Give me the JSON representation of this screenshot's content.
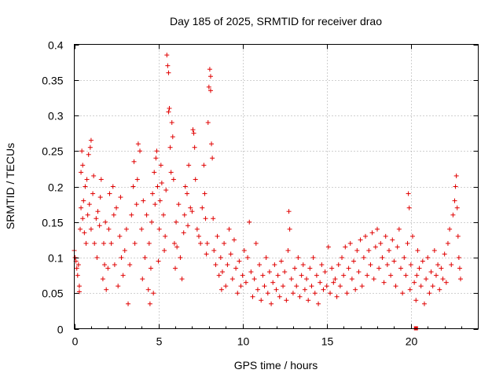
{
  "chart_data": {
    "type": "scatter",
    "title": "Day 185 of 2025, SRMTID for receiver drao",
    "xlabel": "GPS time / hours",
    "ylabel": "SRMTID / TECUs",
    "xlim": [
      0,
      24
    ],
    "ylim": [
      0,
      0.4
    ],
    "x_ticks": [
      0,
      5,
      10,
      15,
      20
    ],
    "x_tick_labels": [
      "0",
      "5",
      "10",
      "15",
      "20"
    ],
    "y_ticks": [
      0,
      0.05,
      0.1,
      0.15,
      0.2,
      0.25,
      0.3,
      0.35,
      0.4
    ],
    "y_tick_labels": [
      "0",
      "0.05",
      "0.1",
      "0.15",
      "0.2",
      "0.25",
      "0.3",
      "0.35",
      "0.4"
    ],
    "grid": true,
    "marker": "+",
    "color": "#e00000",
    "series": [
      {
        "name": "SRMTID",
        "points": [
          [
            0.0,
            0.11
          ],
          [
            0.05,
            0.1
          ],
          [
            0.1,
            0.095
          ],
          [
            0.15,
            0.085
          ],
          [
            0.2,
            0.075
          ],
          [
            0.25,
            0.09
          ],
          [
            0.3,
            0.06
          ],
          [
            0.3,
            0.052
          ],
          [
            0.35,
            0.14
          ],
          [
            0.4,
            0.17
          ],
          [
            0.4,
            0.22
          ],
          [
            0.45,
            0.25
          ],
          [
            0.5,
            0.23
          ],
          [
            0.5,
            0.155
          ],
          [
            0.55,
            0.18
          ],
          [
            0.6,
            0.135
          ],
          [
            0.65,
            0.2
          ],
          [
            0.7,
            0.12
          ],
          [
            0.75,
            0.21
          ],
          [
            0.8,
            0.16
          ],
          [
            0.85,
            0.245
          ],
          [
            0.9,
            0.175
          ],
          [
            0.95,
            0.255
          ],
          [
            1.0,
            0.265
          ],
          [
            1.0,
            0.14
          ],
          [
            1.1,
            0.19
          ],
          [
            1.15,
            0.215
          ],
          [
            1.2,
            0.12
          ],
          [
            1.3,
            0.155
          ],
          [
            1.35,
            0.1
          ],
          [
            1.4,
            0.165
          ],
          [
            1.5,
            0.145
          ],
          [
            1.55,
            0.185
          ],
          [
            1.6,
            0.21
          ],
          [
            1.7,
            0.07
          ],
          [
            1.75,
            0.12
          ],
          [
            1.8,
            0.09
          ],
          [
            1.85,
            0.15
          ],
          [
            1.9,
            0.055
          ],
          [
            2.0,
            0.085
          ],
          [
            2.05,
            0.14
          ],
          [
            2.1,
            0.19
          ],
          [
            2.2,
            0.12
          ],
          [
            2.3,
            0.2
          ],
          [
            2.35,
            0.16
          ],
          [
            2.4,
            0.09
          ],
          [
            2.5,
            0.17
          ],
          [
            2.6,
            0.06
          ],
          [
            2.7,
            0.13
          ],
          [
            2.75,
            0.185
          ],
          [
            2.8,
            0.1
          ],
          [
            2.9,
            0.075
          ],
          [
            3.0,
            0.11
          ],
          [
            3.1,
            0.14
          ],
          [
            3.2,
            0.035
          ],
          [
            3.3,
            0.09
          ],
          [
            3.4,
            0.16
          ],
          [
            3.5,
            0.2
          ],
          [
            3.55,
            0.235
          ],
          [
            3.6,
            0.12
          ],
          [
            3.7,
            0.175
          ],
          [
            3.75,
            0.21
          ],
          [
            3.8,
            0.26
          ],
          [
            3.9,
            0.25
          ],
          [
            4.0,
            0.14
          ],
          [
            4.05,
            0.07
          ],
          [
            4.1,
            0.18
          ],
          [
            4.2,
            0.1
          ],
          [
            4.3,
            0.16
          ],
          [
            4.4,
            0.055
          ],
          [
            4.45,
            0.12
          ],
          [
            4.5,
            0.035
          ],
          [
            4.55,
            0.085
          ],
          [
            4.6,
            0.15
          ],
          [
            4.65,
            0.19
          ],
          [
            4.7,
            0.05
          ],
          [
            4.75,
            0.22
          ],
          [
            4.8,
            0.175
          ],
          [
            4.85,
            0.24
          ],
          [
            4.9,
            0.25
          ],
          [
            4.95,
            0.2
          ],
          [
            5.0,
            0.095
          ],
          [
            5.05,
            0.14
          ],
          [
            5.1,
            0.18
          ],
          [
            5.15,
            0.23
          ],
          [
            5.2,
            0.205
          ],
          [
            5.3,
            0.16
          ],
          [
            5.35,
            0.11
          ],
          [
            5.4,
            0.13
          ],
          [
            5.45,
            0.195
          ],
          [
            5.5,
            0.385
          ],
          [
            5.55,
            0.37
          ],
          [
            5.6,
            0.36
          ],
          [
            5.6,
            0.305
          ],
          [
            5.65,
            0.31
          ],
          [
            5.7,
            0.255
          ],
          [
            5.75,
            0.22
          ],
          [
            5.8,
            0.29
          ],
          [
            5.85,
            0.27
          ],
          [
            5.9,
            0.21
          ],
          [
            5.95,
            0.12
          ],
          [
            6.0,
            0.085
          ],
          [
            6.05,
            0.15
          ],
          [
            6.1,
            0.115
          ],
          [
            6.2,
            0.175
          ],
          [
            6.3,
            0.1
          ],
          [
            6.4,
            0.07
          ],
          [
            6.5,
            0.135
          ],
          [
            6.55,
            0.16
          ],
          [
            6.6,
            0.2
          ],
          [
            6.7,
            0.19
          ],
          [
            6.75,
            0.145
          ],
          [
            6.8,
            0.23
          ],
          [
            6.9,
            0.17
          ],
          [
            7.0,
            0.165
          ],
          [
            7.05,
            0.28
          ],
          [
            7.1,
            0.275
          ],
          [
            7.15,
            0.255
          ],
          [
            7.2,
            0.21
          ],
          [
            7.3,
            0.14
          ],
          [
            7.4,
            0.13
          ],
          [
            7.5,
            0.12
          ],
          [
            7.6,
            0.17
          ],
          [
            7.7,
            0.23
          ],
          [
            7.75,
            0.19
          ],
          [
            7.8,
            0.155
          ],
          [
            7.85,
            0.105
          ],
          [
            7.9,
            0.12
          ],
          [
            7.95,
            0.29
          ],
          [
            8.0,
            0.34
          ],
          [
            8.05,
            0.365
          ],
          [
            8.1,
            0.355
          ],
          [
            8.1,
            0.335
          ],
          [
            8.15,
            0.26
          ],
          [
            8.2,
            0.24
          ],
          [
            8.25,
            0.155
          ],
          [
            8.3,
            0.11
          ],
          [
            8.4,
            0.09
          ],
          [
            8.5,
            0.13
          ],
          [
            8.6,
            0.075
          ],
          [
            8.7,
            0.1
          ],
          [
            8.75,
            0.055
          ],
          [
            8.8,
            0.08
          ],
          [
            8.9,
            0.12
          ],
          [
            9.0,
            0.06
          ],
          [
            9.1,
            0.09
          ],
          [
            9.2,
            0.14
          ],
          [
            9.3,
            0.105
          ],
          [
            9.4,
            0.07
          ],
          [
            9.5,
            0.125
          ],
          [
            9.6,
            0.085
          ],
          [
            9.7,
            0.05
          ],
          [
            9.8,
            0.095
          ],
          [
            9.9,
            0.06
          ],
          [
            10.0,
            0.075
          ],
          [
            10.1,
            0.11
          ],
          [
            10.2,
            0.065
          ],
          [
            10.3,
            0.1
          ],
          [
            10.4,
            0.15
          ],
          [
            10.5,
            0.08
          ],
          [
            10.6,
            0.045
          ],
          [
            10.7,
            0.07
          ],
          [
            10.8,
            0.12
          ],
          [
            10.9,
            0.055
          ],
          [
            11.0,
            0.09
          ],
          [
            11.1,
            0.04
          ],
          [
            11.2,
            0.075
          ],
          [
            11.3,
            0.06
          ],
          [
            11.4,
            0.1
          ],
          [
            11.5,
            0.05
          ],
          [
            11.6,
            0.08
          ],
          [
            11.7,
            0.035
          ],
          [
            11.8,
            0.065
          ],
          [
            11.9,
            0.09
          ],
          [
            12.0,
            0.055
          ],
          [
            12.1,
            0.075
          ],
          [
            12.2,
            0.045
          ],
          [
            12.3,
            0.095
          ],
          [
            12.4,
            0.06
          ],
          [
            12.5,
            0.08
          ],
          [
            12.6,
            0.04
          ],
          [
            12.7,
            0.11
          ],
          [
            12.75,
            0.165
          ],
          [
            12.8,
            0.14
          ],
          [
            12.9,
            0.07
          ],
          [
            13.0,
            0.05
          ],
          [
            13.1,
            0.085
          ],
          [
            13.2,
            0.06
          ],
          [
            13.3,
            0.1
          ],
          [
            13.4,
            0.045
          ],
          [
            13.5,
            0.075
          ],
          [
            13.6,
            0.09
          ],
          [
            13.7,
            0.055
          ],
          [
            13.8,
            0.07
          ],
          [
            13.9,
            0.04
          ],
          [
            14.0,
            0.085
          ],
          [
            14.1,
            0.06
          ],
          [
            14.2,
            0.1
          ],
          [
            14.3,
            0.05
          ],
          [
            14.4,
            0.075
          ],
          [
            14.5,
            0.035
          ],
          [
            14.6,
            0.065
          ],
          [
            14.7,
            0.09
          ],
          [
            14.8,
            0.055
          ],
          [
            14.9,
            0.08
          ],
          [
            15.0,
            0.06
          ],
          [
            15.1,
            0.115
          ],
          [
            15.2,
            0.05
          ],
          [
            15.3,
            0.085
          ],
          [
            15.4,
            0.065
          ],
          [
            15.5,
            0.07
          ],
          [
            15.6,
            0.045
          ],
          [
            15.7,
            0.09
          ],
          [
            15.8,
            0.06
          ],
          [
            15.9,
            0.1
          ],
          [
            16.0,
            0.075
          ],
          [
            16.1,
            0.115
          ],
          [
            16.2,
            0.05
          ],
          [
            16.3,
            0.085
          ],
          [
            16.4,
            0.12
          ],
          [
            16.5,
            0.07
          ],
          [
            16.6,
            0.095
          ],
          [
            16.7,
            0.055
          ],
          [
            16.8,
            0.11
          ],
          [
            16.9,
            0.08
          ],
          [
            17.0,
            0.125
          ],
          [
            17.1,
            0.06
          ],
          [
            17.2,
            0.1
          ],
          [
            17.3,
            0.13
          ],
          [
            17.4,
            0.075
          ],
          [
            17.5,
            0.11
          ],
          [
            17.6,
            0.09
          ],
          [
            17.7,
            0.135
          ],
          [
            17.8,
            0.07
          ],
          [
            17.9,
            0.115
          ],
          [
            18.0,
            0.14
          ],
          [
            18.1,
            0.085
          ],
          [
            18.2,
            0.12
          ],
          [
            18.3,
            0.1
          ],
          [
            18.4,
            0.065
          ],
          [
            18.5,
            0.13
          ],
          [
            18.6,
            0.09
          ],
          [
            18.7,
            0.11
          ],
          [
            18.8,
            0.075
          ],
          [
            18.9,
            0.125
          ],
          [
            19.0,
            0.095
          ],
          [
            19.1,
            0.06
          ],
          [
            19.2,
            0.115
          ],
          [
            19.3,
            0.14
          ],
          [
            19.4,
            0.085
          ],
          [
            19.5,
            0.05
          ],
          [
            19.6,
            0.1
          ],
          [
            19.7,
            0.075
          ],
          [
            19.8,
            0.12
          ],
          [
            19.85,
            0.19
          ],
          [
            19.9,
            0.17
          ],
          [
            19.95,
            0.055
          ],
          [
            20.0,
            0.09
          ],
          [
            20.1,
            0.13
          ],
          [
            20.2,
            0.065
          ],
          [
            20.3,
            0.04
          ],
          [
            20.35,
            0.075
          ],
          [
            20.4,
            0.11
          ],
          [
            20.5,
            0.085
          ],
          [
            20.6,
            0.06
          ],
          [
            20.7,
            0.095
          ],
          [
            20.8,
            0.035
          ],
          [
            20.9,
            0.07
          ],
          [
            21.0,
            0.1
          ],
          [
            21.1,
            0.05
          ],
          [
            21.2,
            0.08
          ],
          [
            21.3,
            0.06
          ],
          [
            21.4,
            0.11
          ],
          [
            21.5,
            0.075
          ],
          [
            21.6,
            0.09
          ],
          [
            21.7,
            0.055
          ],
          [
            21.8,
            0.085
          ],
          [
            21.9,
            0.07
          ],
          [
            22.0,
            0.105
          ],
          [
            22.1,
            0.065
          ],
          [
            22.2,
            0.12
          ],
          [
            22.3,
            0.14
          ],
          [
            22.4,
            0.09
          ],
          [
            22.5,
            0.16
          ],
          [
            22.6,
            0.18
          ],
          [
            22.65,
            0.2
          ],
          [
            22.7,
            0.215
          ],
          [
            22.75,
            0.17
          ],
          [
            22.8,
            0.13
          ],
          [
            22.85,
            0.1
          ],
          [
            22.9,
            0.085
          ],
          [
            22.95,
            0.07
          ]
        ]
      }
    ],
    "highlight_point": [
      20.3,
      0.0
    ]
  }
}
